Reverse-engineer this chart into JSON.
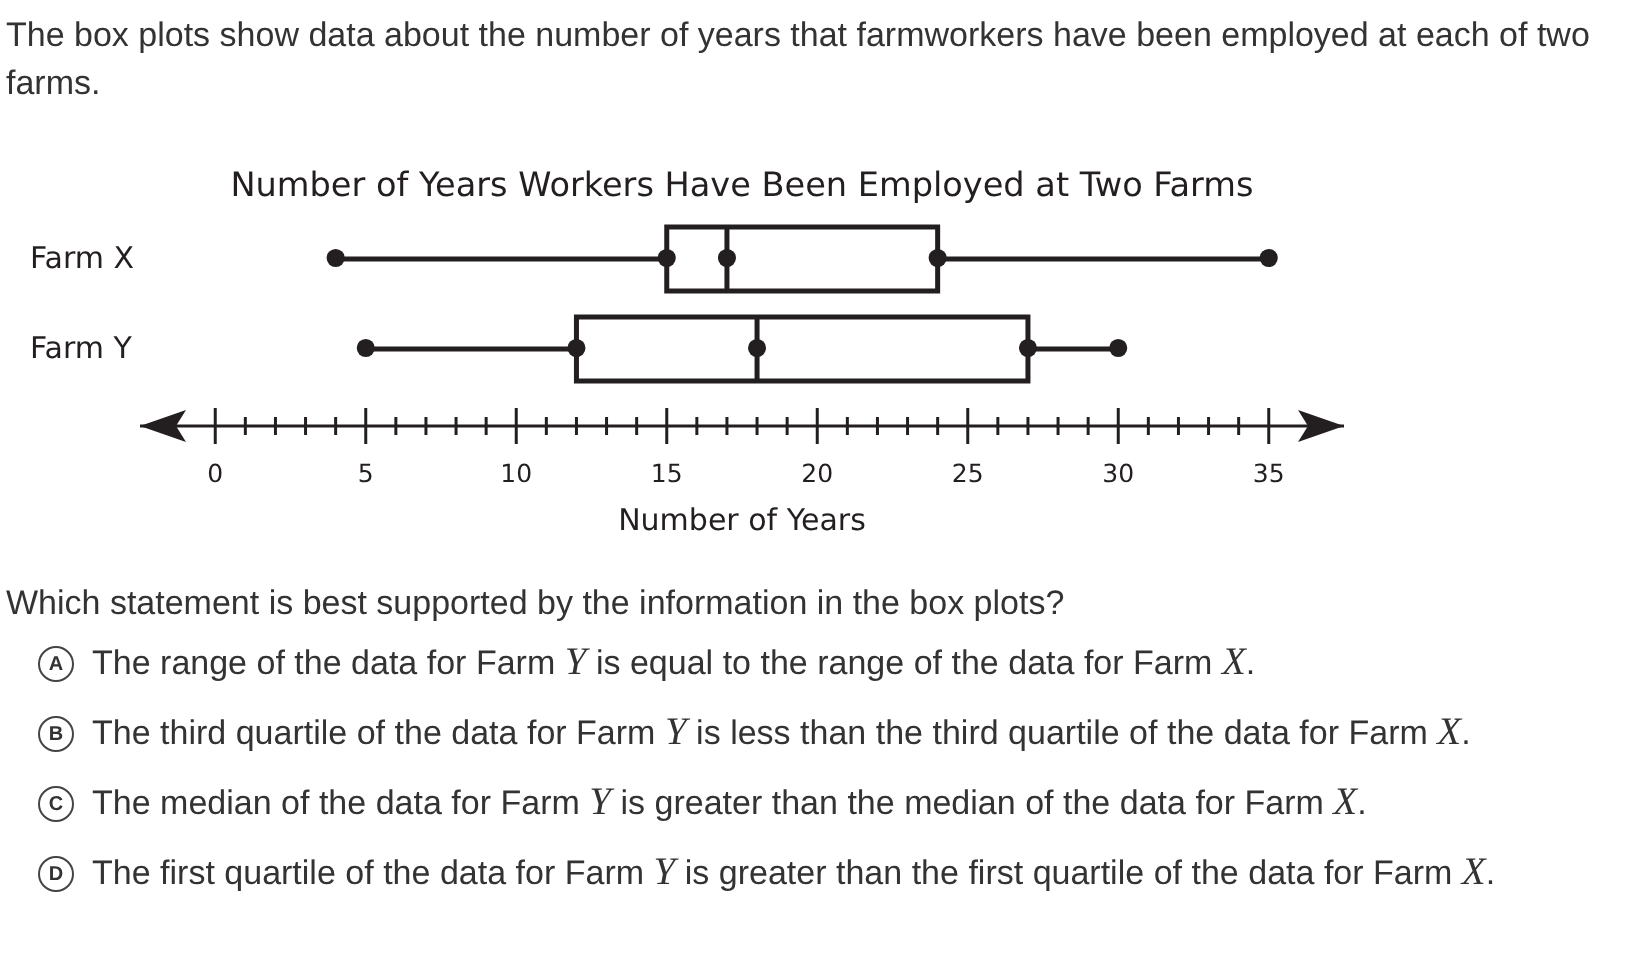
{
  "chart_data": {
    "type": "box",
    "orientation": "horizontal",
    "title": "Number of Years Workers Have Been Employed at Two Farms",
    "xlabel": "Number of Years",
    "categories": [
      "Farm X",
      "Farm Y"
    ],
    "boxes": [
      {
        "low": 4,
        "q1": 15,
        "median": 17,
        "q3": 24,
        "high": 35
      },
      {
        "low": 5,
        "q1": 12,
        "median": 18,
        "q3": 27,
        "high": 30
      }
    ],
    "color": "#231f20",
    "series": [
      {
        "type": "scatter",
        "x": [
          "Farm X",
          "Farm X",
          "Farm X",
          "Farm X",
          "Farm X",
          "Farm Y",
          "Farm Y",
          "Farm Y",
          "Farm Y",
          "Farm Y"
        ],
        "values": [
          4,
          15,
          17,
          24,
          35,
          5,
          12,
          18,
          27,
          30
        ],
        "color": "#231f20"
      }
    ],
    "marker": "circle",
    "grid": false,
    "legend": false,
    "xlim": [
      -2.5,
      37.5
    ],
    "xticks": [
      0,
      {
        "value": 1,
        "label": null
      },
      {
        "value": 2,
        "label": null
      },
      {
        "value": 3,
        "label": null
      },
      {
        "value": 4,
        "label": null
      },
      5,
      {
        "value": 6,
        "label": null
      },
      {
        "value": 7,
        "label": null
      },
      {
        "value": 8,
        "label": null
      },
      {
        "value": 9,
        "label": null
      },
      10,
      {
        "value": 11,
        "label": null
      },
      {
        "value": 12,
        "label": null
      },
      {
        "value": 13,
        "label": null
      },
      {
        "value": 14,
        "label": null
      },
      15,
      {
        "value": 16,
        "label": null
      },
      {
        "value": 17,
        "label": null
      },
      {
        "value": 18,
        "label": null
      },
      {
        "value": 19,
        "label": null
      },
      20,
      {
        "value": 21,
        "label": null
      },
      {
        "value": 22,
        "label": null
      },
      {
        "value": 23,
        "label": null
      },
      {
        "value": 24,
        "label": null
      },
      25,
      {
        "value": 26,
        "label": null
      },
      {
        "value": 27,
        "label": null
      },
      {
        "value": 28,
        "label": null
      },
      {
        "value": 29,
        "label": null
      },
      30,
      {
        "value": 31,
        "label": null
      },
      {
        "value": 32,
        "label": null
      },
      {
        "value": 33,
        "label": null
      },
      {
        "value": 34,
        "label": null
      },
      35
    ],
    "annotations": [
      "The box plots show data about the number of years that farmworkers have been employed at each of two farms.",
      "Which statement is best supported by the information in the box plots?",
      "A The range of the data for Farm Y is equal to the range of the data for Farm X.",
      "B The third quartile of the data for Farm Y is less than the third quartile of the data for Farm X.",
      "C The median of the data for Farm Y is greater than the median of the data for Farm X.",
      "D The first quartile of the data for Farm Y is greater than the first quartile of the data for Farm X."
    ]
  }
}
